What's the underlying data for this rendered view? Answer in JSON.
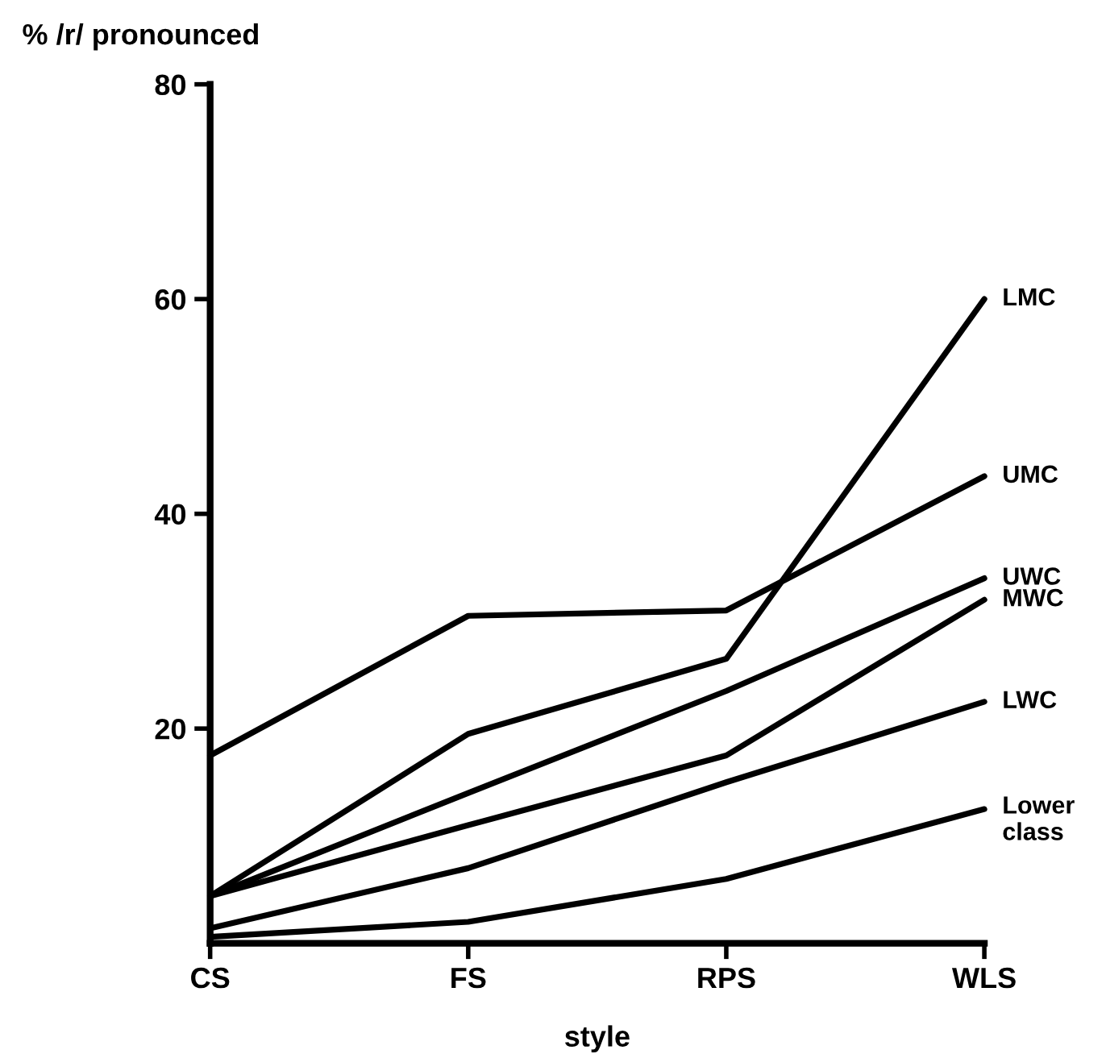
{
  "chart_data": {
    "type": "line",
    "ylabel": "% /r/ pronounced",
    "xlabel": "style",
    "categories": [
      "CS",
      "FS",
      "RPS",
      "WLS"
    ],
    "series": [
      {
        "name": "LMC",
        "color": "#000000",
        "values": [
          4.4,
          19.5,
          26.5,
          60
        ]
      },
      {
        "name": "UMC",
        "color": "#000000",
        "values": [
          17.5,
          30.5,
          31,
          43.5
        ]
      },
      {
        "name": "UWC",
        "color": "#000000",
        "values": [
          4.4,
          14,
          23.5,
          34
        ]
      },
      {
        "name": "MWC",
        "color": "#000000",
        "values": [
          4.4,
          11,
          17.5,
          32
        ]
      },
      {
        "name": "LWC",
        "color": "#000000",
        "values": [
          1.4,
          7,
          15,
          22.5
        ]
      },
      {
        "name": "Lower\nclass",
        "color": "#000000",
        "values": [
          0.6,
          2,
          6,
          12.5
        ]
      }
    ],
    "ylim": [
      0,
      80
    ],
    "yticks": [
      20,
      40,
      60,
      80
    ],
    "grid": false,
    "legend": false,
    "line_style": "solid"
  }
}
